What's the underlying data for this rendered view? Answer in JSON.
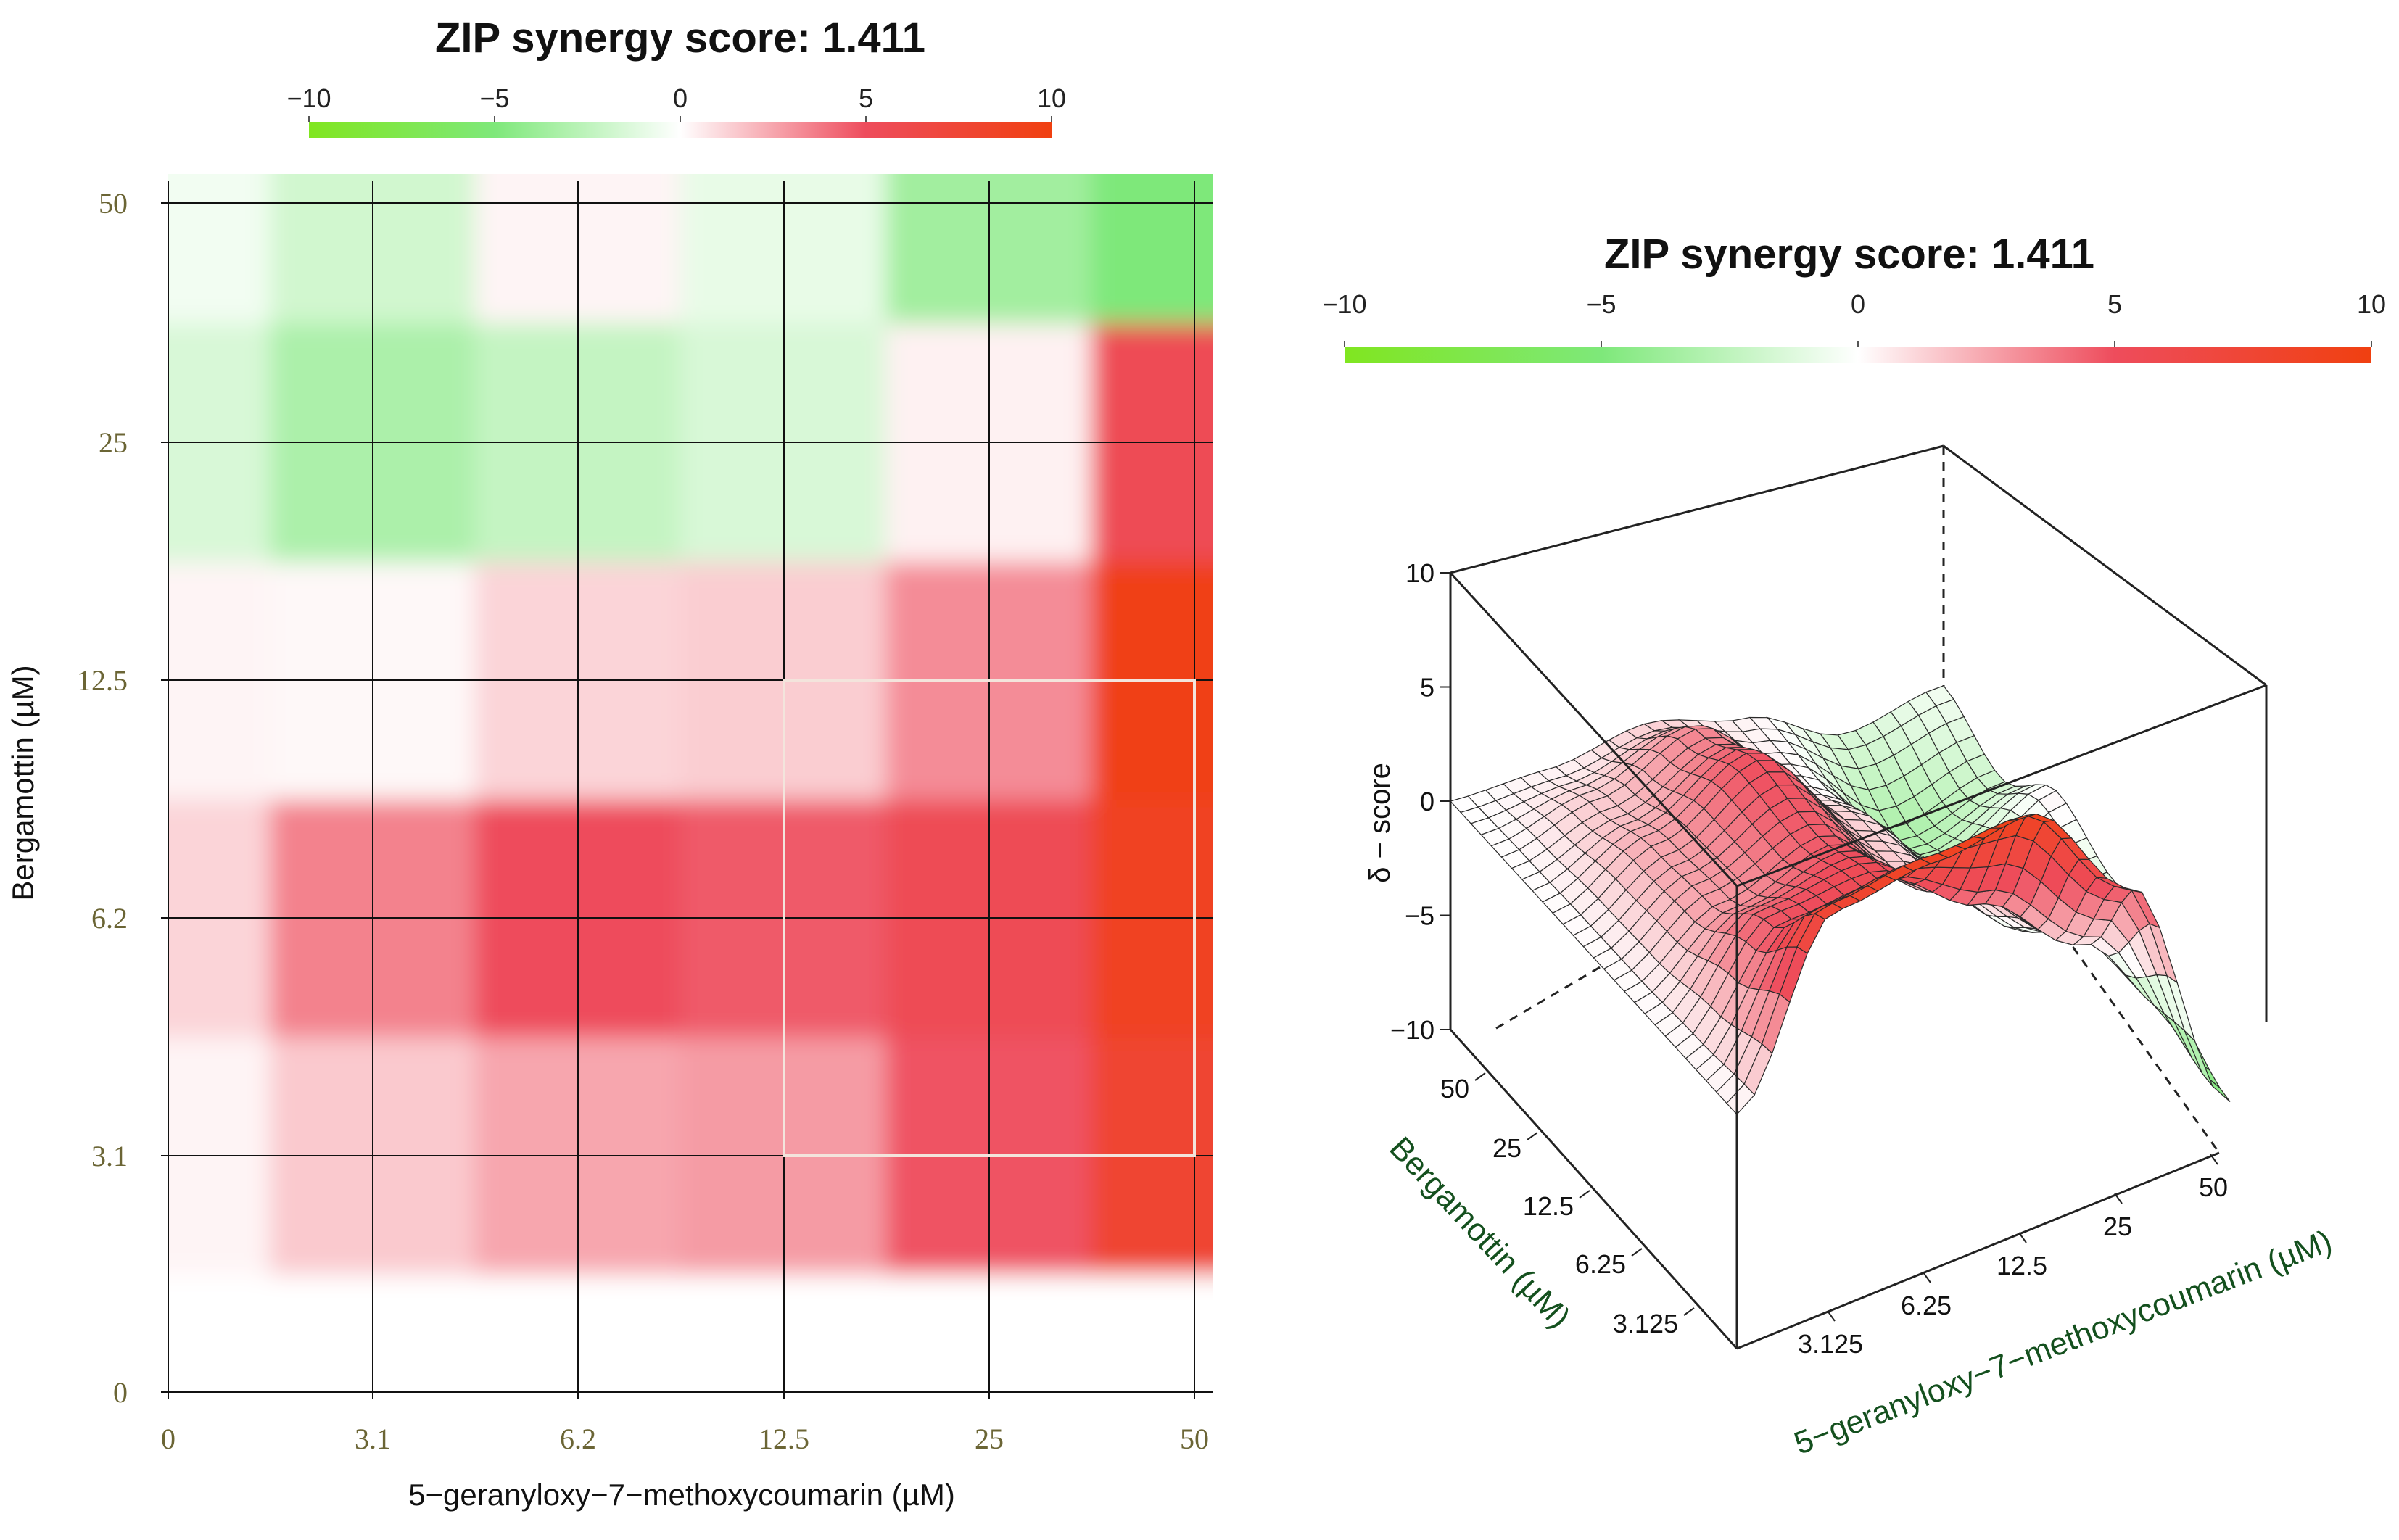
{
  "chart_data": [
    {
      "type": "heatmap",
      "title": "ZIP synergy score: 1.411",
      "colorbar": {
        "ticks": [
          "−10",
          "−5",
          "0",
          "5",
          "10"
        ],
        "range": [
          -10,
          10
        ],
        "colors": {
          "low": "#80e620",
          "mid": "#ffffff",
          "high": "#f04010"
        }
      },
      "xlabel": "5−geranyloxy−7−methoxycoumarin  (µM)",
      "ylabel": "Bergamottin (µM)",
      "x_ticks": [
        "0",
        "3.1",
        "6.2",
        "12.5",
        "25",
        "50"
      ],
      "y_ticks": [
        "0",
        "3.1",
        "6.2",
        "12.5",
        "25",
        "50"
      ],
      "grid": true,
      "highlight_region": {
        "x": [
          "12.5",
          "50"
        ],
        "y": [
          "3.1",
          "12.5"
        ]
      },
      "values": [
        [
          0.0,
          0.0,
          0.0,
          0.0,
          0.0,
          0.0
        ],
        [
          0.3,
          1.5,
          2.5,
          2.8,
          4.8,
          7.8
        ],
        [
          1.2,
          3.5,
          5.0,
          4.6,
          5.5,
          8.8
        ],
        [
          0.3,
          0.2,
          1.2,
          1.4,
          3.2,
          9.8
        ],
        [
          -1.5,
          -3.2,
          -2.3,
          -1.5,
          0.4,
          5.5
        ],
        [
          -0.5,
          -1.8,
          0.3,
          -0.9,
          -3.6,
          -5.0
        ]
      ]
    },
    {
      "type": "surface",
      "title": "ZIP synergy score: 1.411",
      "colorbar": {
        "ticks": [
          "−10",
          "−5",
          "0",
          "5",
          "10"
        ],
        "range": [
          -10,
          10
        ]
      },
      "zlabel": "δ − score",
      "z_ticks": [
        "10",
        "5",
        "0",
        "−5",
        "−10"
      ],
      "zlim": [
        -10,
        10
      ],
      "xlabel": "5−geranyloxy−7−methoxycoumarin  (µM)",
      "ylabel": "Bergamottin (µM)",
      "x_ticks": [
        "3.125",
        "6.25",
        "12.5",
        "25",
        "50"
      ],
      "y_ticks": [
        "50",
        "25",
        "12.5",
        "6.25",
        "3.125"
      ]
    }
  ]
}
